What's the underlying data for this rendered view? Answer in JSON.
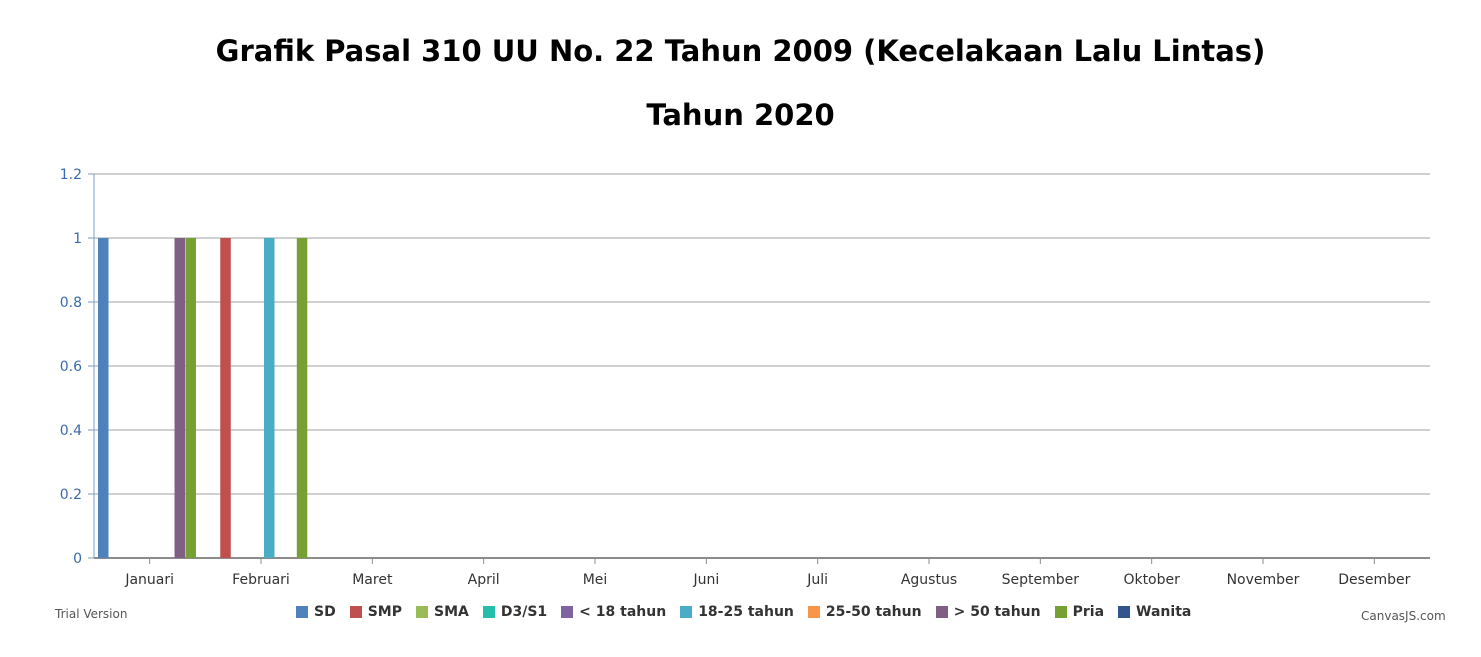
{
  "chart_data": {
    "type": "bar",
    "title": "Grafik Pasal 310 UU No. 22 Tahun 2009 (Kecelakaan Lalu Lintas)",
    "subtitle": "Tahun 2020",
    "categories": [
      "Januari",
      "Februari",
      "Maret",
      "April",
      "Mei",
      "Juni",
      "Juli",
      "Agustus",
      "September",
      "Oktober",
      "November",
      "Desember"
    ],
    "ylim": [
      0,
      1.2
    ],
    "yticks": [
      "0",
      "0.2",
      "0.4",
      "0.6",
      "0.8",
      "1",
      "1.2"
    ],
    "grid": true,
    "legend_position": "bottom",
    "series": [
      {
        "name": "SD",
        "color": "#4f81bc",
        "values": [
          1,
          0,
          0,
          0,
          0,
          0,
          0,
          0,
          0,
          0,
          0,
          0
        ]
      },
      {
        "name": "SMP",
        "color": "#c0504e",
        "values": [
          0,
          1,
          0,
          0,
          0,
          0,
          0,
          0,
          0,
          0,
          0,
          0
        ]
      },
      {
        "name": "SMA",
        "color": "#9bbb58",
        "values": [
          0,
          0,
          0,
          0,
          0,
          0,
          0,
          0,
          0,
          0,
          0,
          0
        ]
      },
      {
        "name": "D3/S1",
        "color": "#23bfaa",
        "values": [
          0,
          0,
          0,
          0,
          0,
          0,
          0,
          0,
          0,
          0,
          0,
          0
        ]
      },
      {
        "name": "< 18 tahun",
        "color": "#8064a1",
        "values": [
          0,
          0,
          0,
          0,
          0,
          0,
          0,
          0,
          0,
          0,
          0,
          0
        ]
      },
      {
        "name": "18-25 tahun",
        "color": "#4aacc5",
        "values": [
          0,
          1,
          0,
          0,
          0,
          0,
          0,
          0,
          0,
          0,
          0,
          0
        ]
      },
      {
        "name": "25-50 tahun",
        "color": "#f79647",
        "values": [
          0,
          0,
          0,
          0,
          0,
          0,
          0,
          0,
          0,
          0,
          0,
          0
        ]
      },
      {
        "name": "> 50 tahun",
        "color": "#7f6084",
        "values": [
          1,
          0,
          0,
          0,
          0,
          0,
          0,
          0,
          0,
          0,
          0,
          0
        ]
      },
      {
        "name": "Pria",
        "color": "#77a033",
        "values": [
          1,
          1,
          0,
          0,
          0,
          0,
          0,
          0,
          0,
          0,
          0,
          0
        ]
      },
      {
        "name": "Wanita",
        "color": "#33558b",
        "values": [
          0,
          0,
          0,
          0,
          0,
          0,
          0,
          0,
          0,
          0,
          0,
          0
        ]
      }
    ]
  },
  "watermarks": {
    "left": "Trial Version",
    "right": "CanvasJS.com"
  }
}
